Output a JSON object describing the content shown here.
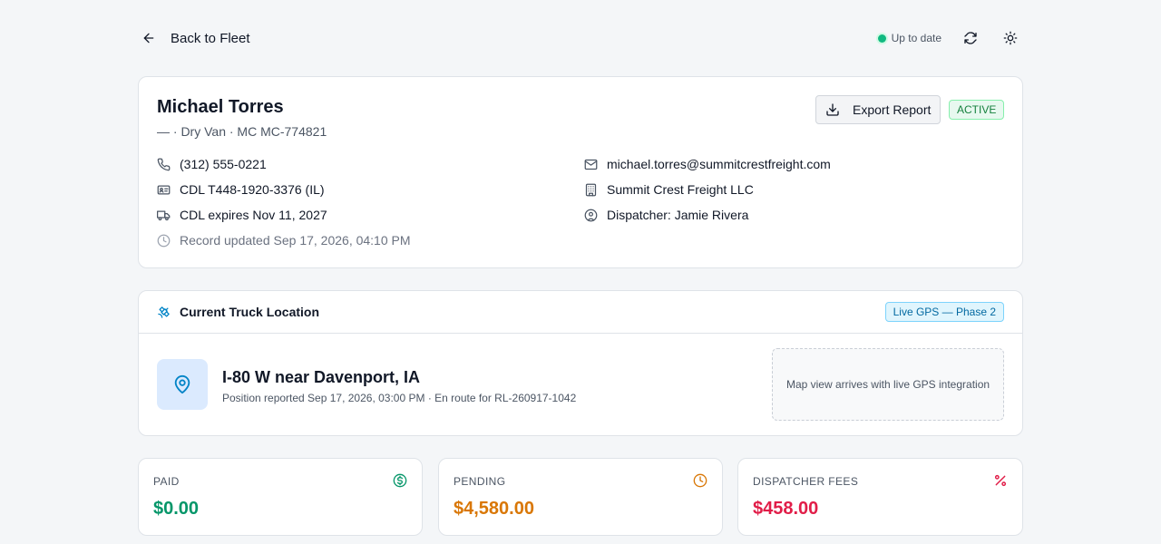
{
  "header": {
    "back_label": "Back to Fleet",
    "status_text": "Up to date",
    "status_color": "#10b981"
  },
  "driver": {
    "name": "Michael Torres",
    "subtitle": "— · Dry Van · MC MC-774821",
    "status_badge": "ACTIVE",
    "export_label": "Export Report",
    "details": {
      "phone": "(312) 555-0221",
      "cdl": "CDL T448-1920-3376 (IL)",
      "cdl_expiry": "CDL expires Nov 11, 2027",
      "record_updated": "Record updated Sep 17, 2026, 04:10 PM",
      "email": "michael.torres@summitcrestfreight.com",
      "company": "Summit Crest Freight LLC",
      "dispatcher": "Dispatcher: Jamie Rivera"
    }
  },
  "location": {
    "title": "Current Truck Location",
    "badge": "Live GPS — Phase 2",
    "place": "I-80 W near Davenport, IA",
    "meta": "Position reported Sep 17, 2026, 03:00 PM · En route for RL-260917-1042",
    "map_placeholder": "Map view arrives with live GPS integration"
  },
  "stats": [
    {
      "label": "PAID",
      "value": "$0.00",
      "color": "#059669",
      "icon": "dollar-circle-icon"
    },
    {
      "label": "PENDING",
      "value": "$4,580.00",
      "color": "#d97706",
      "icon": "clock-icon"
    },
    {
      "label": "DISPATCHER FEES",
      "value": "$458.00",
      "color": "#e11d48",
      "icon": "percent-icon"
    }
  ]
}
